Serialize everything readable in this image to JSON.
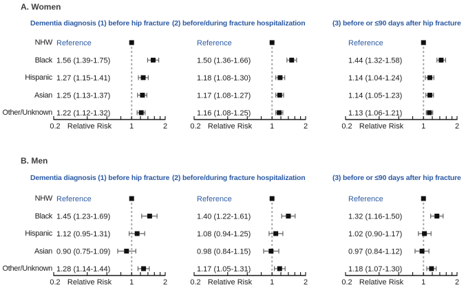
{
  "colors": {
    "accent_blue": "#2d5ba3",
    "header_text": "#3d3d3d",
    "body_text": "#1a1a1a",
    "marker": "#111111",
    "whisker": "#606060",
    "axis": "#1a1a1a",
    "reference_dash": "#aaaaaa"
  },
  "chart_data": {
    "type": "forest",
    "xscale": "log",
    "xlim": [
      0.2,
      2
    ],
    "xticks": [
      0.2,
      0.4,
      0.6,
      0.8,
      1.0,
      1.2,
      1.4,
      1.6,
      1.8,
      2.0
    ],
    "xtick_label_values": [
      0.2,
      1,
      2
    ],
    "xtick_labels": [
      "0.2",
      "1",
      "2"
    ],
    "xlabel": "Relative Risk",
    "reference_line": 1.0,
    "reference_text": "Reference",
    "row_labels": [
      "NHW",
      "Black",
      "Hispanic",
      "Asian",
      "Other/Unknown"
    ],
    "legend_position": "none",
    "grid": false,
    "panels": [
      {
        "panel_label": "A. Women",
        "subplots": [
          {
            "title": "Dementia diagnosis (1) before hip fracture",
            "rows": [
              {
                "group": "NHW",
                "text": "Reference",
                "rr": 1.0,
                "lo": null,
                "hi": null
              },
              {
                "group": "Black",
                "text": "1.56 (1.39-1.75)",
                "rr": 1.56,
                "lo": 1.39,
                "hi": 1.75
              },
              {
                "group": "Hispanic",
                "text": "1.27 (1.15-1.41)",
                "rr": 1.27,
                "lo": 1.15,
                "hi": 1.41
              },
              {
                "group": "Asian",
                "text": "1.25 (1.13-1.37)",
                "rr": 1.25,
                "lo": 1.13,
                "hi": 1.37
              },
              {
                "group": "Other/Unknown",
                "text": "1.22 (1.12-1.32)",
                "rr": 1.22,
                "lo": 1.12,
                "hi": 1.32
              }
            ]
          },
          {
            "title": "(2) before/during fracture hospitalization",
            "rows": [
              {
                "group": "NHW",
                "text": "Reference",
                "rr": 1.0,
                "lo": null,
                "hi": null
              },
              {
                "group": "Black",
                "text": "1.50 (1.36-1.66)",
                "rr": 1.5,
                "lo": 1.36,
                "hi": 1.66
              },
              {
                "group": "Hispanic",
                "text": "1.18 (1.08-1.30)",
                "rr": 1.18,
                "lo": 1.08,
                "hi": 1.3
              },
              {
                "group": "Asian",
                "text": "1.17 (1.08-1.27)",
                "rr": 1.17,
                "lo": 1.08,
                "hi": 1.27
              },
              {
                "group": "Other/Unknown",
                "text": "1.16 (1.08-1.25)",
                "rr": 1.16,
                "lo": 1.08,
                "hi": 1.25
              }
            ]
          },
          {
            "title": "(3) before or ≤90 days after hip fracture",
            "rows": [
              {
                "group": "NHW",
                "text": "Reference",
                "rr": 1.0,
                "lo": null,
                "hi": null
              },
              {
                "group": "Black",
                "text": "1.44 (1.32-1.58)",
                "rr": 1.44,
                "lo": 1.32,
                "hi": 1.58
              },
              {
                "group": "Hispanic",
                "text": "1.14 (1.04-1.24)",
                "rr": 1.14,
                "lo": 1.04,
                "hi": 1.24
              },
              {
                "group": "Asian",
                "text": "1.14 (1.05-1.23)",
                "rr": 1.14,
                "lo": 1.05,
                "hi": 1.23
              },
              {
                "group": "Other/Unknown",
                "text": "1.13 (1.06-1.21)",
                "rr": 1.13,
                "lo": 1.06,
                "hi": 1.21
              }
            ]
          }
        ]
      },
      {
        "panel_label": "B. Men",
        "subplots": [
          {
            "title": "Dementia diagnosis (1) before hip fracture",
            "rows": [
              {
                "group": "NHW",
                "text": "Reference",
                "rr": 1.0,
                "lo": null,
                "hi": null
              },
              {
                "group": "Black",
                "text": "1.45 (1.23-1.69)",
                "rr": 1.45,
                "lo": 1.23,
                "hi": 1.69
              },
              {
                "group": "Hispanic",
                "text": "1.12 (0.95-1.31)",
                "rr": 1.12,
                "lo": 0.95,
                "hi": 1.31
              },
              {
                "group": "Asian",
                "text": "0.90 (0.75-1.09)",
                "rr": 0.9,
                "lo": 0.75,
                "hi": 1.09
              },
              {
                "group": "Other/Unknown",
                "text": "1.28 (1.14-1.44)",
                "rr": 1.28,
                "lo": 1.14,
                "hi": 1.44
              }
            ]
          },
          {
            "title": "(2) before/during fracture hospitalization",
            "rows": [
              {
                "group": "NHW",
                "text": "Reference",
                "rr": 1.0,
                "lo": null,
                "hi": null
              },
              {
                "group": "Black",
                "text": "1.40 (1.22-1.61)",
                "rr": 1.4,
                "lo": 1.22,
                "hi": 1.61
              },
              {
                "group": "Hispanic",
                "text": "1.08 (0.94-1.25)",
                "rr": 1.08,
                "lo": 0.94,
                "hi": 1.25
              },
              {
                "group": "Asian",
                "text": "0.98 (0.84-1.15)",
                "rr": 0.98,
                "lo": 0.84,
                "hi": 1.15
              },
              {
                "group": "Other/Unknown",
                "text": "1.17 (1.05-1.31)",
                "rr": 1.17,
                "lo": 1.05,
                "hi": 1.31
              }
            ]
          },
          {
            "title": "(3) before or ≤90 days after hip fracture",
            "rows": [
              {
                "group": "NHW",
                "text": "Reference",
                "rr": 1.0,
                "lo": null,
                "hi": null
              },
              {
                "group": "Black",
                "text": "1.32 (1.16-1.50)",
                "rr": 1.32,
                "lo": 1.16,
                "hi": 1.5
              },
              {
                "group": "Hispanic",
                "text": "1.02 (0.90-1.17)",
                "rr": 1.02,
                "lo": 0.9,
                "hi": 1.17
              },
              {
                "group": "Asian",
                "text": "0.97 (0.84-1.12)",
                "rr": 0.97,
                "lo": 0.84,
                "hi": 1.12
              },
              {
                "group": "Other/Unknown",
                "text": "1.18 (1.07-1.30)",
                "rr": 1.18,
                "lo": 1.07,
                "hi": 1.3
              }
            ]
          }
        ]
      }
    ]
  }
}
